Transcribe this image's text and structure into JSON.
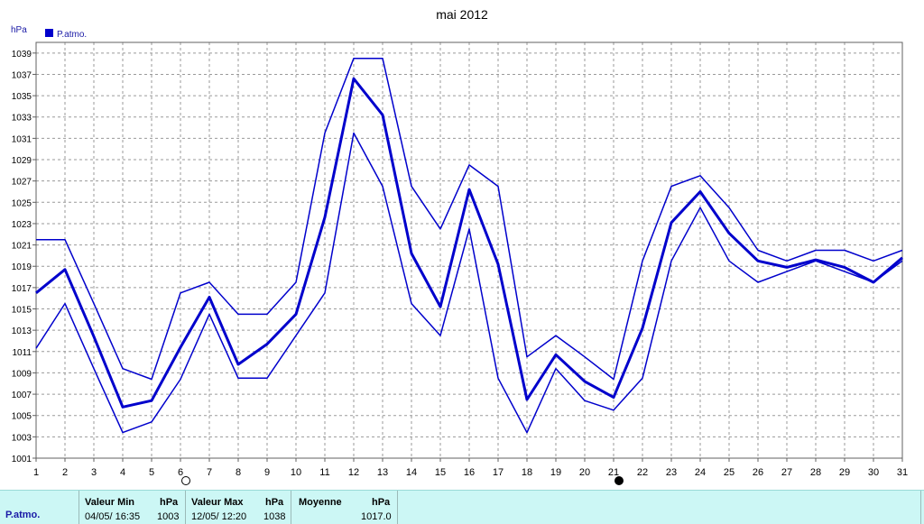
{
  "chart_data": {
    "type": "line",
    "title": "mai 2012",
    "ylabel": "hPa",
    "legend": [
      {
        "label": "P.atmo.",
        "color": "#0000cc"
      }
    ],
    "x": [
      1,
      2,
      3,
      4,
      5,
      6,
      7,
      8,
      9,
      10,
      11,
      12,
      13,
      14,
      15,
      16,
      17,
      18,
      19,
      20,
      21,
      22,
      23,
      24,
      25,
      26,
      27,
      28,
      29,
      30,
      31
    ],
    "ylim": [
      1001,
      1040
    ],
    "yticks": [
      1001,
      1003,
      1005,
      1007,
      1009,
      1011,
      1013,
      1015,
      1017,
      1019,
      1021,
      1023,
      1025,
      1027,
      1029,
      1031,
      1033,
      1035,
      1037,
      1039
    ],
    "grid": true,
    "series": [
      {
        "role": "max",
        "values": [
          1021.5,
          1021.5,
          1015.5,
          1009.4,
          1008.4,
          1016.5,
          1017.5,
          1014.5,
          1014.5,
          1017.5,
          1031.5,
          1038.5,
          1038.5,
          1026.5,
          1022.5,
          1028.5,
          1026.5,
          1010.5,
          1012.5,
          1010.5,
          1008.4,
          1019.5,
          1026.5,
          1027.5,
          1024.5,
          1020.5,
          1019.5,
          1020.5,
          1020.5,
          1019.5,
          1020.5
        ]
      },
      {
        "role": "mean",
        "values": [
          1016.5,
          1018.7,
          1012.4,
          1005.8,
          1006.4,
          1011.4,
          1016.1,
          1009.8,
          1011.7,
          1014.5,
          1023.6,
          1036.6,
          1033.2,
          1020.2,
          1015.2,
          1026.2,
          1019.2,
          1006.5,
          1010.7,
          1008.2,
          1006.7,
          1013.2,
          1023.1,
          1026.0,
          1022.1,
          1019.5,
          1018.9,
          1019.6,
          1018.9,
          1017.5,
          1019.8
        ]
      },
      {
        "role": "min",
        "values": [
          1011.3,
          1015.5,
          1009.4,
          1003.4,
          1004.4,
          1008.4,
          1014.5,
          1008.5,
          1008.5,
          1012.5,
          1016.5,
          1031.5,
          1026.5,
          1015.5,
          1012.5,
          1022.5,
          1008.5,
          1003.4,
          1009.4,
          1006.4,
          1005.5,
          1008.5,
          1019.5,
          1024.5,
          1019.5,
          1017.5,
          1018.5,
          1019.5,
          1018.5,
          1017.5,
          1019.5
        ]
      }
    ],
    "moon_markers": [
      {
        "day": 6,
        "phase": "new"
      },
      {
        "day": 21,
        "phase": "full"
      }
    ]
  },
  "stats": {
    "series_label": "P.atmo.",
    "min_header": "Valeur Min",
    "max_header": "Valeur Max",
    "avg_header": "Moyenne",
    "unit": "hPa",
    "min_date": "04/05/  16:35",
    "min_value": "1003",
    "max_date": "12/05/  12:20",
    "max_value": "1038",
    "avg_value": "1017.0"
  },
  "colors": {
    "line": "#0000cc",
    "grid": "#9a9a9a",
    "panel": "#ccf7f5"
  }
}
